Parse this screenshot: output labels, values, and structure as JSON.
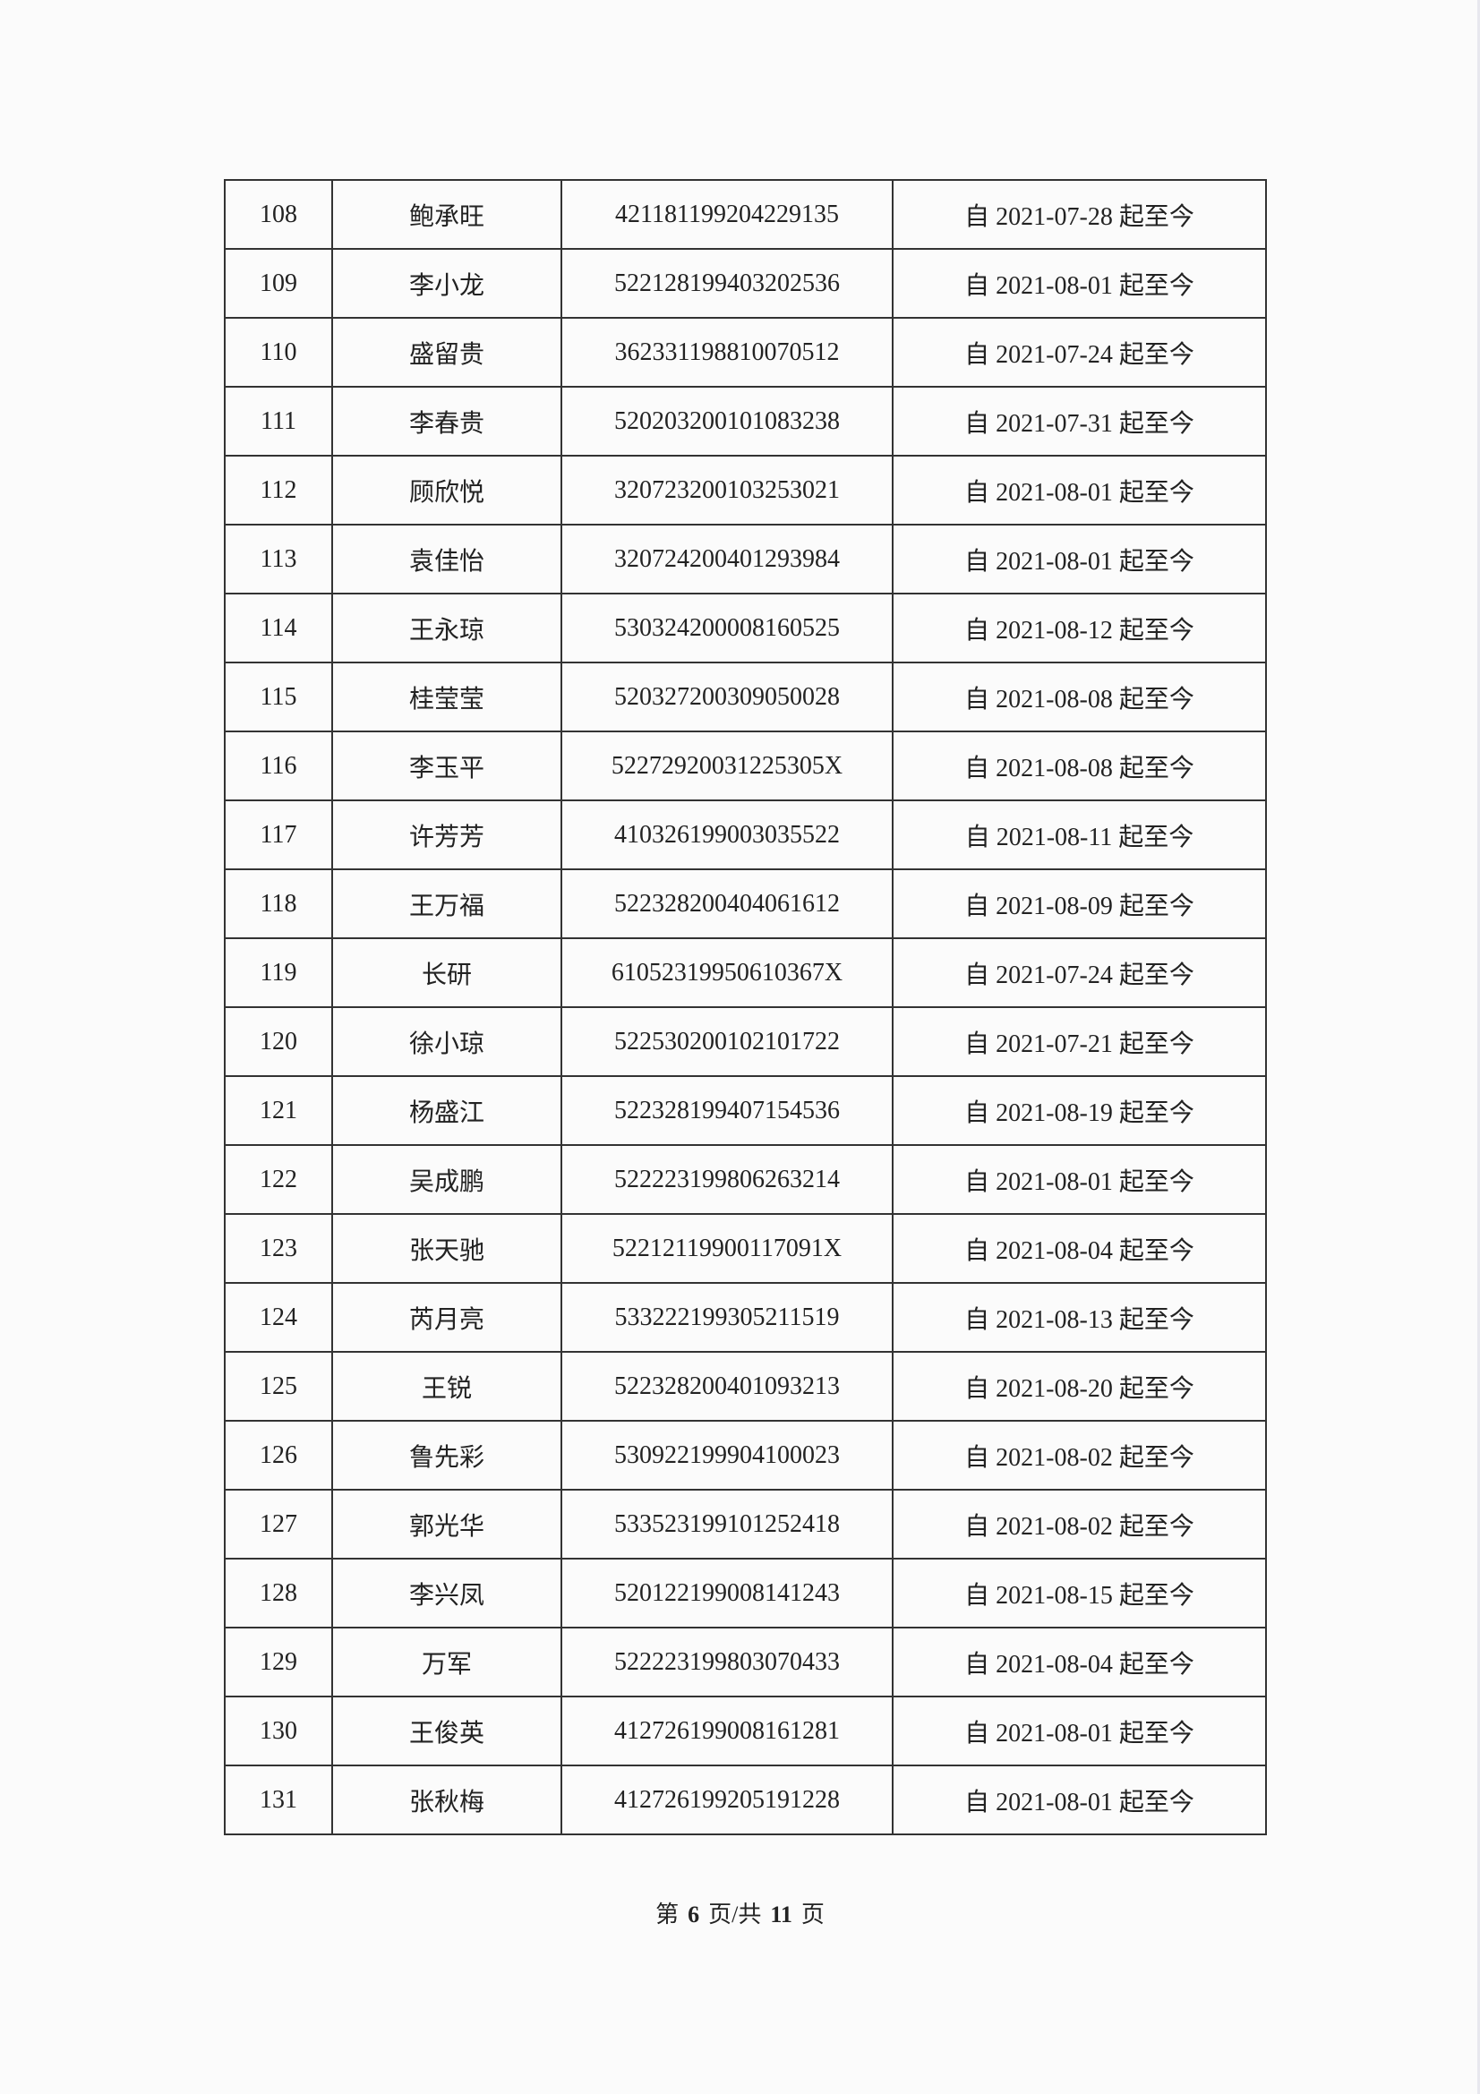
{
  "rows": [
    {
      "no": "108",
      "name": "鲍承旺",
      "id": "421181199204229135",
      "period": "自 2021-07-28 起至今"
    },
    {
      "no": "109",
      "name": "李小龙",
      "id": "522128199403202536",
      "period": "自 2021-08-01 起至今"
    },
    {
      "no": "110",
      "name": "盛留贵",
      "id": "362331198810070512",
      "period": "自 2021-07-24 起至今"
    },
    {
      "no": "111",
      "name": "李春贵",
      "id": "520203200101083238",
      "period": "自 2021-07-31 起至今"
    },
    {
      "no": "112",
      "name": "顾欣悦",
      "id": "320723200103253021",
      "period": "自 2021-08-01 起至今"
    },
    {
      "no": "113",
      "name": "袁佳怡",
      "id": "320724200401293984",
      "period": "自 2021-08-01 起至今"
    },
    {
      "no": "114",
      "name": "王永琼",
      "id": "530324200008160525",
      "period": "自 2021-08-12 起至今"
    },
    {
      "no": "115",
      "name": "桂莹莹",
      "id": "520327200309050028",
      "period": "自 2021-08-08 起至今"
    },
    {
      "no": "116",
      "name": "李玉平",
      "id": "52272920031225305X",
      "period": "自 2021-08-08 起至今"
    },
    {
      "no": "117",
      "name": "许芳芳",
      "id": "410326199003035522",
      "period": "自 2021-08-11 起至今"
    },
    {
      "no": "118",
      "name": "王万福",
      "id": "522328200404061612",
      "period": "自 2021-08-09 起至今"
    },
    {
      "no": "119",
      "name": "长研",
      "id": "61052319950610367X",
      "period": "自 2021-07-24 起至今"
    },
    {
      "no": "120",
      "name": "徐小琼",
      "id": "522530200102101722",
      "period": "自 2021-07-21 起至今"
    },
    {
      "no": "121",
      "name": "杨盛江",
      "id": "522328199407154536",
      "period": "自 2021-08-19 起至今"
    },
    {
      "no": "122",
      "name": "吴成鹏",
      "id": "522223199806263214",
      "period": "自 2021-08-01 起至今"
    },
    {
      "no": "123",
      "name": "张天驰",
      "id": "52212119900117091X",
      "period": "自 2021-08-04 起至今"
    },
    {
      "no": "124",
      "name": "芮月亮",
      "id": "533222199305211519",
      "period": "自 2021-08-13 起至今"
    },
    {
      "no": "125",
      "name": "王锐",
      "id": "522328200401093213",
      "period": "自 2021-08-20 起至今"
    },
    {
      "no": "126",
      "name": "鲁先彩",
      "id": "530922199904100023",
      "period": "自 2021-08-02 起至今"
    },
    {
      "no": "127",
      "name": "郭光华",
      "id": "533523199101252418",
      "period": "自 2021-08-02 起至今"
    },
    {
      "no": "128",
      "name": "李兴凤",
      "id": "520122199008141243",
      "period": "自 2021-08-15 起至今"
    },
    {
      "no": "129",
      "name": "万军",
      "id": "522223199803070433",
      "period": "自 2021-08-04 起至今"
    },
    {
      "no": "130",
      "name": "王俊英",
      "id": "412726199008161281",
      "period": "自 2021-08-01 起至今"
    },
    {
      "no": "131",
      "name": "张秋梅",
      "id": "412726199205191228",
      "period": "自 2021-08-01 起至今"
    }
  ],
  "footer": {
    "prefix": "第",
    "page": "6",
    "middle": "页/共",
    "total": "11",
    "suffix": "页"
  }
}
